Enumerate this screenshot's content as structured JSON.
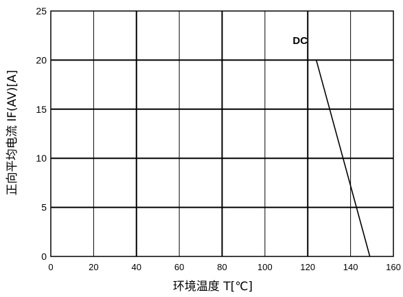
{
  "chart_data": {
    "type": "line",
    "xlabel": "环境温度  T[℃]",
    "ylabel": "正向平均电流 IF(AV)[A]",
    "xlim": [
      0,
      160
    ],
    "ylim": [
      0,
      25
    ],
    "x_ticks": [
      "0",
      "20",
      "40",
      "60",
      "80",
      "100",
      "120",
      "140",
      "160"
    ],
    "y_ticks": [
      "0",
      "5",
      "10",
      "15",
      "20",
      "25"
    ],
    "grid": true,
    "series": [
      {
        "name": "DC",
        "x": [
          124,
          149
        ],
        "y": [
          20,
          0
        ]
      }
    ],
    "annotations": [
      {
        "text": "DC",
        "x": 113,
        "y": 22
      }
    ]
  }
}
